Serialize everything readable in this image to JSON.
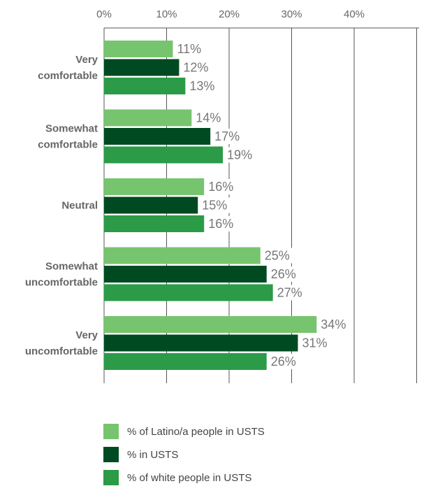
{
  "chart_data": {
    "type": "bar",
    "orientation": "horizontal",
    "categories": [
      [
        "Very",
        "comfortable"
      ],
      [
        "Somewhat",
        "comfortable"
      ],
      [
        "Neutral"
      ],
      [
        "Somewhat",
        "uncomfortable"
      ],
      [
        "Very",
        "uncomfortable"
      ]
    ],
    "series": [
      {
        "name": "% of Latino/a people in USTS",
        "color": "#77c46e",
        "values": [
          11,
          14,
          16,
          25,
          34
        ]
      },
      {
        "name": "% in USTS",
        "color": "#004a22",
        "values": [
          12,
          17,
          15,
          26,
          31
        ]
      },
      {
        "name": "% of white people in USTS",
        "color": "#2b9b47",
        "values": [
          13,
          19,
          16,
          27,
          26
        ]
      }
    ],
    "x_ticks": [
      "0%",
      "10%",
      "20%",
      "30%",
      "40%",
      ""
    ],
    "xlim": [
      0,
      50
    ],
    "grid": true,
    "legend_position": "bottom",
    "value_suffix": "%",
    "title": "",
    "xlabel": "",
    "ylabel": ""
  }
}
